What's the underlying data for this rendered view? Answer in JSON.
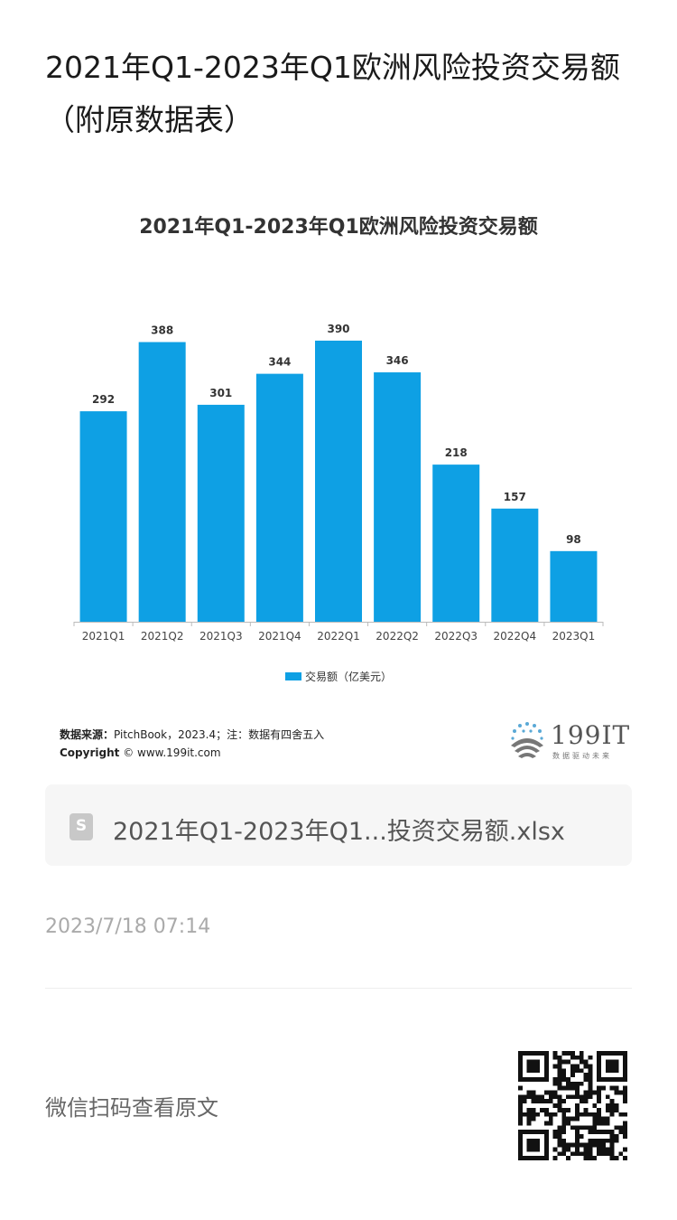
{
  "article": {
    "title": "2021年Q1-2023年Q1欧洲风险投资交易额（附原数据表）"
  },
  "chart_data": {
    "type": "bar",
    "title": "2021年Q1-2023年Q1欧洲风险投资交易额",
    "categories": [
      "2021Q1",
      "2021Q2",
      "2021Q3",
      "2021Q4",
      "2022Q1",
      "2022Q2",
      "2022Q3",
      "2022Q4",
      "2023Q1"
    ],
    "series": [
      {
        "name": "交易额（亿美元）",
        "values": [
          292,
          388,
          301,
          344,
          390,
          346,
          218,
          157,
          98
        ]
      }
    ],
    "ylim": [
      0,
      420
    ],
    "grid": false,
    "legend_position": "bottom",
    "bar_color": "#0ea0e4"
  },
  "source": {
    "label": "数据来源：",
    "text": "PitchBook，2023.4；注：数据有四舍五入",
    "copyright_label": "Copyright",
    "copyright_text": "© www.199it.com"
  },
  "logo": {
    "text": "199IT",
    "tagline": "数据驱动未来"
  },
  "file": {
    "icon": "spreadsheet-file-icon",
    "icon_letter": "S",
    "name": "2021年Q1-2023年Q1...投资交易额.xlsx"
  },
  "timestamp": "2023/7/18 07:14",
  "wechat": {
    "label": "微信扫码查看原文",
    "qr_icon": "qr-code-icon"
  }
}
